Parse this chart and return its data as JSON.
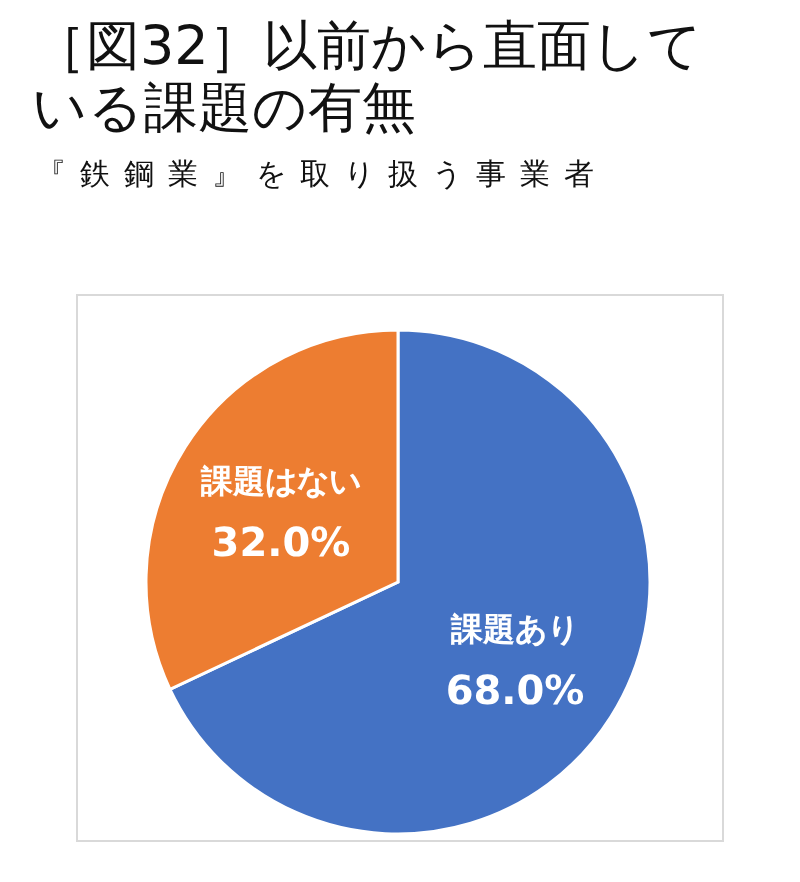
{
  "chart_data": {
    "type": "pie",
    "title": "［図32］以前から直面している課題の有無",
    "subtitle": "『鉄鋼業』を取り扱う事業者",
    "categories": [
      "課題あり",
      "課題はない"
    ],
    "values": [
      68.0,
      32.0
    ],
    "colors": [
      "#4472c4",
      "#ed7d31"
    ],
    "value_labels": [
      "68.0%",
      "32.0%"
    ]
  }
}
